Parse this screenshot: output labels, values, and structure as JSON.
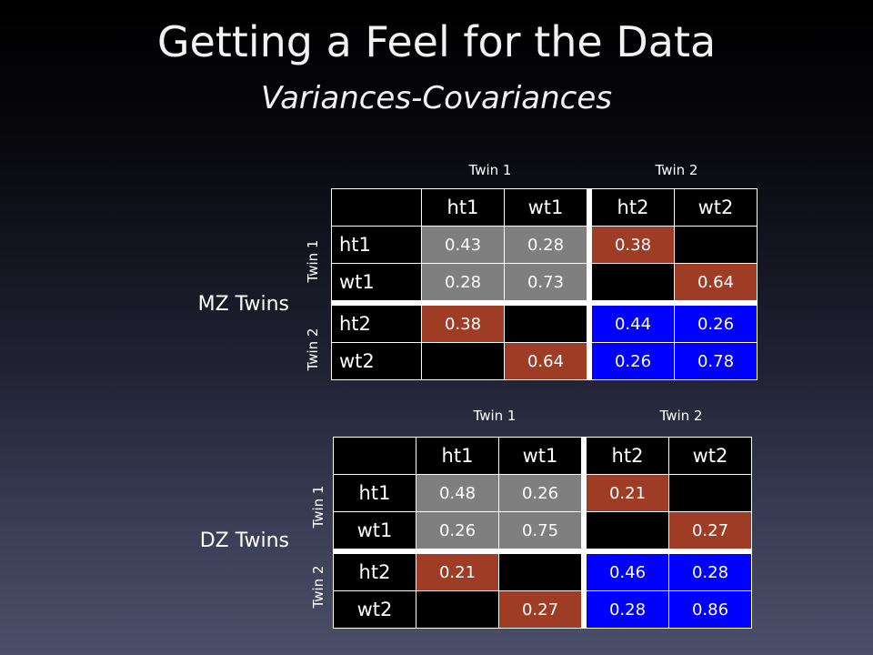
{
  "title": "Getting a Feel for the Data",
  "subtitle": "Variances-Covariances",
  "mz": {
    "label": "MZ Twins",
    "twin1": "Twin 1",
    "twin2": "Twin 2",
    "row_twin1": "Twin 1",
    "row_twin2": "Twin 2",
    "cols": [
      "ht1",
      "wt1",
      "ht2",
      "wt2"
    ],
    "rows": [
      {
        "label": "ht1",
        "cells": [
          "0.43",
          "0.28",
          "0.38",
          ""
        ]
      },
      {
        "label": "wt1",
        "cells": [
          "0.28",
          "0.73",
          "",
          "0.64"
        ]
      },
      {
        "label": "ht2",
        "cells": [
          "0.38",
          "",
          "0.44",
          "0.26"
        ]
      },
      {
        "label": "wt2",
        "cells": [
          "",
          "0.64",
          "0.26",
          "0.78"
        ]
      }
    ]
  },
  "dz": {
    "label": "DZ Twins",
    "twin1": "Twin 1",
    "twin2": "Twin 2",
    "row_twin1": "Twin 1",
    "row_twin2": "Twin 2",
    "cols": [
      "ht1",
      "wt1",
      "ht2",
      "wt2"
    ],
    "rows": [
      {
        "label": "ht1",
        "cells": [
          "0.48",
          "0.26",
          "0.21",
          ""
        ]
      },
      {
        "label": "wt1",
        "cells": [
          "0.26",
          "0.75",
          "",
          "0.27"
        ]
      },
      {
        "label": "ht2",
        "cells": [
          "0.21",
          "",
          "0.46",
          "0.28"
        ]
      },
      {
        "label": "wt2",
        "cells": [
          "",
          "0.27",
          "0.28",
          "0.86"
        ]
      }
    ]
  },
  "colors": {
    "within_twin1": "#7f7f7f",
    "cross_twin": "#9f3c26",
    "within_twin2": "#0000ff",
    "empty": "#000000"
  }
}
